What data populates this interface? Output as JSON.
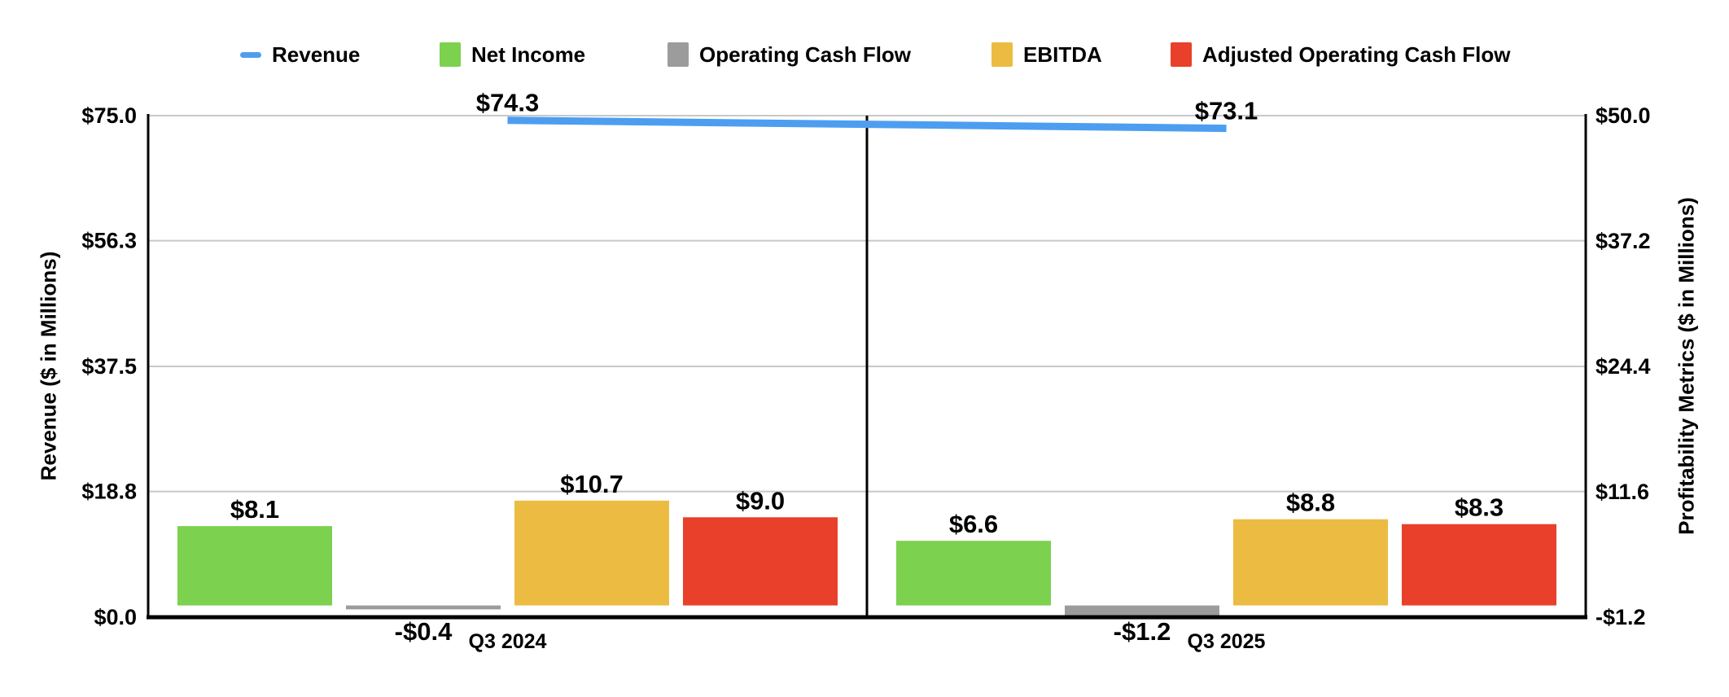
{
  "legend": {
    "items": [
      {
        "label": "Revenue",
        "marker": "dash",
        "color": "#4D9EF0"
      },
      {
        "label": "Net Income",
        "marker": "square",
        "color": "#7CD14F"
      },
      {
        "label": "Operating Cash Flow",
        "marker": "square",
        "color": "#9C9C9C"
      },
      {
        "label": "EBITDA",
        "marker": "square",
        "color": "#ECBC42"
      },
      {
        "label": "Adjusted Operating Cash Flow",
        "marker": "square",
        "color": "#E8402A"
      }
    ]
  },
  "chart_data": {
    "type": "combo-dual-axis (line + grouped bar)",
    "categories": [
      "Q3 2024",
      "Q3 2025"
    ],
    "line_series": {
      "name": "Revenue",
      "axis": "left",
      "values": [
        74.3,
        73.1
      ],
      "labels": [
        "$74.3",
        "$73.1"
      ],
      "color": "#4D9EF0"
    },
    "bar_series": [
      {
        "name": "Net Income",
        "color": "#7CD14F",
        "values": [
          8.1,
          6.6
        ],
        "labels": [
          "$8.1",
          "$6.6"
        ]
      },
      {
        "name": "Operating Cash Flow",
        "color": "#9C9C9C",
        "values": [
          -0.4,
          -1.2
        ],
        "labels": [
          "-$0.4",
          "-$1.2"
        ]
      },
      {
        "name": "EBITDA",
        "color": "#ECBC42",
        "values": [
          10.7,
          8.8
        ],
        "labels": [
          "$10.7",
          "$8.8"
        ]
      },
      {
        "name": "Adjusted Operating Cash Flow",
        "color": "#E8402A",
        "values": [
          9.0,
          8.3
        ],
        "labels": [
          "$9.0",
          "$8.3"
        ]
      }
    ],
    "left_axis": {
      "title": "Revenue ($ in Millions)",
      "min": 0,
      "max": 75,
      "tick_values": [
        0,
        18.8,
        37.5,
        56.3,
        75
      ],
      "ticks": [
        "$0.0",
        "$18.8",
        "$37.5",
        "$56.3",
        "$75.0"
      ]
    },
    "right_axis": {
      "title": "Profitability Metrics ($ in Millions)",
      "min": -1.2,
      "max": 50,
      "tick_values": [
        -1.2,
        11.6,
        24.4,
        37.2,
        50
      ],
      "ticks": [
        "-$1.2",
        "$11.6",
        "$24.4",
        "$37.2",
        "$50.0"
      ]
    },
    "grid": true,
    "legend_position": "top"
  },
  "colors": {
    "grid": "#C8C8C8",
    "axis": "#000000",
    "background": "#FFFFFF",
    "text": "#000000"
  }
}
